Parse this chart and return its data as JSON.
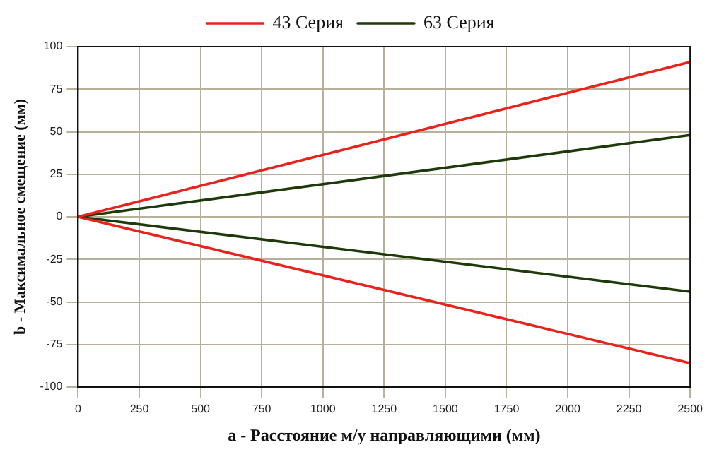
{
  "chart_data": {
    "type": "line",
    "x": [
      0,
      2500
    ],
    "xlim": [
      0,
      2500
    ],
    "xticks": [
      0,
      250,
      500,
      750,
      1000,
      1250,
      1500,
      1750,
      2000,
      2250,
      2500
    ],
    "ylim": [
      -100,
      100
    ],
    "yticks": [
      -100,
      -75,
      -50,
      -25,
      0,
      25,
      50,
      75,
      100
    ],
    "xlabel": "a - Расстояние м/у направляющими (мм)",
    "ylabel": "b - Максимальное смещение (мм)",
    "series": [
      {
        "name": "43 Серия",
        "color": "#e8231c",
        "values": [
          0,
          91
        ]
      },
      {
        "name": "63 Серия",
        "color": "#1f3a0a",
        "values": [
          0,
          48
        ]
      },
      {
        "color": "#e8231c",
        "values": [
          0,
          -86
        ]
      },
      {
        "color": "#1f3a0a",
        "values": [
          0,
          -44
        ]
      }
    ],
    "grid": true,
    "legend": "top",
    "marker": "none",
    "line_style": "solid"
  }
}
